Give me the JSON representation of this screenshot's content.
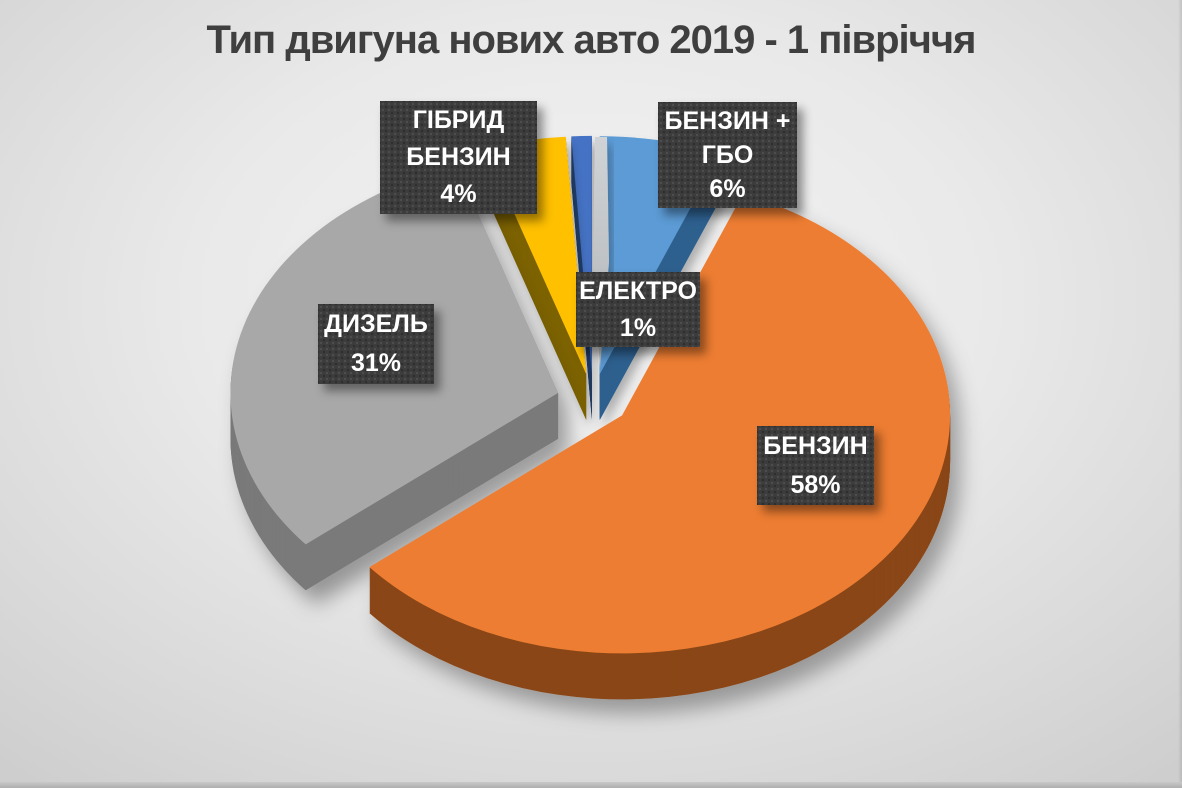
{
  "title": "Тип двигуна нових авто 2019 - 1 півріччя",
  "chart_data": {
    "type": "pie",
    "style": "3d-exploded-pie",
    "title": "Тип двигуна нових авто 2019 - 1 півріччя",
    "legend_position": "none",
    "unit": "%",
    "start_angle_deg": 0,
    "direction": "clockwise",
    "slices": [
      {
        "label": "БЕНЗИН + ГБО",
        "value": 6,
        "pct_label": "6%",
        "color": "#5B9BD5",
        "side_color": "#2f618f",
        "label_lines": [
          "БЕНЗИН +",
          "ГБО",
          "6%"
        ]
      },
      {
        "label": "БЕНЗИН",
        "value": 58,
        "pct_label": "58%",
        "color": "#ED7D31",
        "side_color": "#8a4617",
        "label_lines": [
          "БЕНЗИН",
          "58%"
        ]
      },
      {
        "label": "ДИЗЕЛЬ",
        "value": 31,
        "pct_label": "31%",
        "color": "#A8A8A8",
        "side_color": "#7a7a7a",
        "label_lines": [
          "ДИЗЕЛЬ",
          "31%"
        ]
      },
      {
        "label": "ГІБРИД БЕНЗИН",
        "value": 4,
        "pct_label": "4%",
        "color": "#FFC000",
        "side_color": "#7c6300",
        "label_lines": [
          "ГІБРИД",
          "БЕНЗИН",
          "4%"
        ]
      },
      {
        "label": "ЕЛЕКТРО",
        "value": 1,
        "pct_label": "1%",
        "color": "#4472C4",
        "side_color": "#24406e",
        "label_lines": [
          "ЕЛЕКТРО",
          "1%"
        ]
      }
    ]
  },
  "label_box": {
    "bg": "#3c3c3c",
    "text_color": "#ffffff"
  },
  "background": {
    "highlight": "#f4f4f4",
    "base": "#e0e0e0",
    "edge": "#cecece",
    "bottom_strip": "#aeaeae"
  },
  "title_color": "#3f3f3f"
}
